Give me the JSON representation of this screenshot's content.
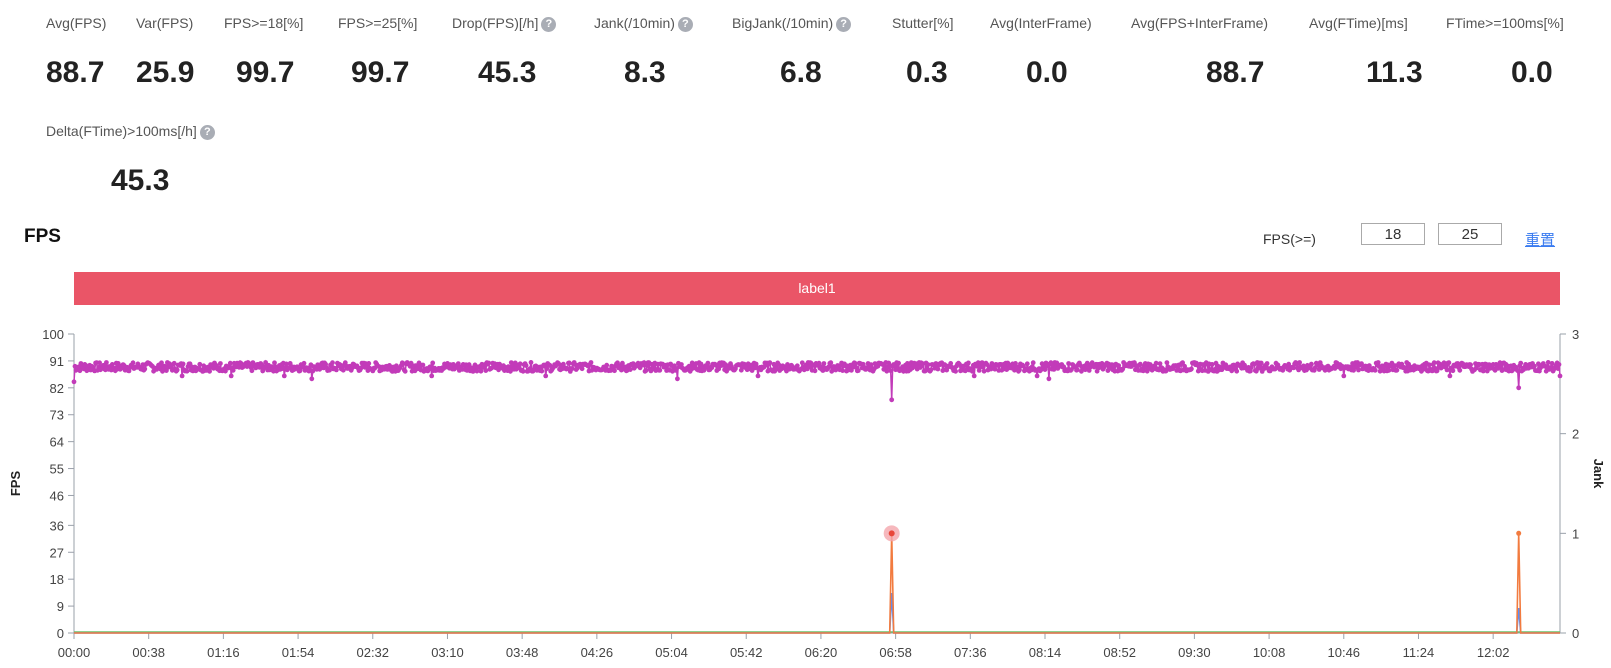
{
  "metrics": [
    {
      "label": "Avg(FPS)",
      "value": "88.7",
      "help": false
    },
    {
      "label": "Var(FPS)",
      "value": "25.9",
      "help": false
    },
    {
      "label": "FPS>=18[%]",
      "value": "99.7",
      "help": false
    },
    {
      "label": "FPS>=25[%]",
      "value": "99.7",
      "help": false
    },
    {
      "label": "Drop(FPS)[/h]",
      "value": "45.3",
      "help": true
    },
    {
      "label": "Jank(/10min)",
      "value": "8.3",
      "help": true
    },
    {
      "label": "BigJank(/10min)",
      "value": "6.8",
      "help": true
    },
    {
      "label": "Stutter[%]",
      "value": "0.3",
      "help": false
    },
    {
      "label": "Avg(InterFrame)",
      "value": "0.0",
      "help": false
    },
    {
      "label": "Avg(FPS+InterFrame)",
      "value": "88.7",
      "help": false
    },
    {
      "label": "Avg(FTime)[ms]",
      "value": "11.3",
      "help": false
    },
    {
      "label": "FTime>=100ms[%]",
      "value": "0.0",
      "help": false
    },
    {
      "label": "Delta(FTime)>100ms[/h]",
      "value": "45.3",
      "help": true
    }
  ],
  "help_glyph": "?",
  "chart_header": {
    "title": "FPS",
    "threshold_label": "FPS(>=)",
    "threshold_min": "18",
    "threshold_max": "25",
    "reset_label": "重置"
  },
  "label_band": "label1",
  "colors": {
    "fps": "#c23bb9",
    "jank": "#f27b3f",
    "bigjank": "#5b8ff9",
    "baseline": "#69c36b",
    "band": "#ea5567",
    "highlight": "#f4a6ad",
    "highlight_dot": "#e8473a"
  },
  "chart_data": {
    "type": "line",
    "title": "FPS",
    "ylabel": "FPS",
    "y2label": "Jank",
    "x_ticks": [
      "00:00",
      "00:38",
      "01:16",
      "01:54",
      "02:32",
      "03:10",
      "03:48",
      "04:26",
      "05:04",
      "05:42",
      "06:20",
      "06:58",
      "07:36",
      "08:14",
      "08:52",
      "09:30",
      "10:08",
      "10:46",
      "11:24",
      "12:02"
    ],
    "x_range": [
      "00:00",
      "12:36"
    ],
    "y_ticks": [
      0,
      9,
      18,
      27,
      36,
      46,
      55,
      64,
      73,
      82,
      91,
      100
    ],
    "ylim": [
      0,
      100
    ],
    "y2_ticks": [
      0,
      1,
      2,
      3
    ],
    "y2lim": [
      0,
      3
    ],
    "series": [
      {
        "key": "fps",
        "axis": "left",
        "markers": true,
        "x_step_seconds": 30,
        "base_value": 89,
        "fluctuation": 1.5,
        "dips": [
          {
            "time": "00:00",
            "value": 84
          },
          {
            "time": "00:55",
            "value": 86
          },
          {
            "time": "01:20",
            "value": 86
          },
          {
            "time": "01:47",
            "value": 86
          },
          {
            "time": "02:01",
            "value": 85
          },
          {
            "time": "03:02",
            "value": 86
          },
          {
            "time": "04:00",
            "value": 86
          },
          {
            "time": "05:07",
            "value": 85
          },
          {
            "time": "05:48",
            "value": 86
          },
          {
            "time": "06:56",
            "value": 78
          },
          {
            "time": "07:38",
            "value": 86
          },
          {
            "time": "08:10",
            "value": 86
          },
          {
            "time": "08:16",
            "value": 85
          },
          {
            "time": "10:46",
            "value": 86
          },
          {
            "time": "11:40",
            "value": 86
          },
          {
            "time": "12:15",
            "value": 82
          },
          {
            "time": "12:36",
            "value": 86
          }
        ]
      },
      {
        "key": "jank",
        "axis": "right",
        "points": [
          {
            "time": "00:00",
            "value": 0
          },
          {
            "time": "06:55",
            "value": 0
          },
          {
            "time": "06:56",
            "value": 1
          },
          {
            "time": "06:57",
            "value": 0
          },
          {
            "time": "12:14",
            "value": 0
          },
          {
            "time": "12:15",
            "value": 1
          },
          {
            "time": "12:16",
            "value": 0
          },
          {
            "time": "12:36",
            "value": 0
          }
        ]
      },
      {
        "key": "bigjank",
        "axis": "right",
        "points": [
          {
            "time": "00:00",
            "value": 0
          },
          {
            "time": "06:55",
            "value": 0
          },
          {
            "time": "06:56",
            "value": 0.4
          },
          {
            "time": "06:57",
            "value": 0
          },
          {
            "time": "12:14",
            "value": 0
          },
          {
            "time": "12:15",
            "value": 0.25
          },
          {
            "time": "12:16",
            "value": 0
          },
          {
            "time": "12:36",
            "value": 0
          }
        ]
      },
      {
        "key": "baseline",
        "axis": "right",
        "points": [
          {
            "time": "00:00",
            "value": 0.01
          },
          {
            "time": "12:36",
            "value": 0.01
          }
        ]
      }
    ],
    "highlight": {
      "series": "jank",
      "time": "06:56",
      "value": 1
    },
    "grid": false,
    "legend": "none"
  }
}
